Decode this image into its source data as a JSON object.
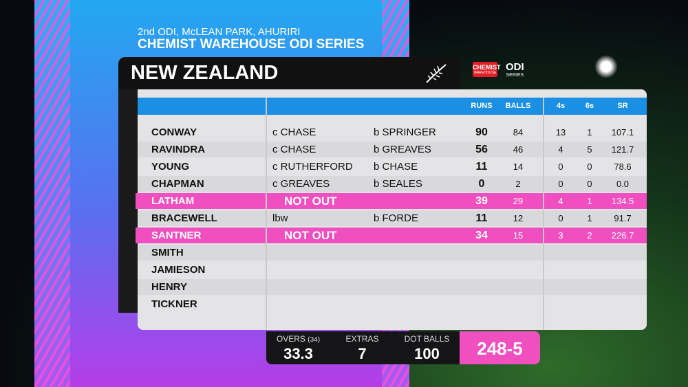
{
  "header": {
    "match": "2nd ODI, McLEAN PARK, AHURIRI",
    "series": "CHEMIST WAREHOUSE ODI SERIES",
    "team": "NEW ZEALAND",
    "sponsor": "CHEMIST",
    "sponsor_sub": "WAREHOUSE",
    "series_logo": "ODI",
    "series_logo_sub": "SERIES"
  },
  "table": {
    "columns": [
      "RUNS",
      "BALLS",
      "4s",
      "6s",
      "SR"
    ],
    "rows": [
      {
        "name": "CONWAY",
        "dismissal": "c CHASE",
        "bowler": "b SPRINGER",
        "runs": 90,
        "balls": 84,
        "fours": 13,
        "sixes": 1,
        "sr": "107.1"
      },
      {
        "name": "RAVINDRA",
        "dismissal": "c CHASE",
        "bowler": "b GREAVES",
        "runs": 56,
        "balls": 46,
        "fours": 4,
        "sixes": 5,
        "sr": "121.7"
      },
      {
        "name": "YOUNG",
        "dismissal": "c RUTHERFORD",
        "bowler": "b CHASE",
        "runs": 11,
        "balls": 14,
        "fours": 0,
        "sixes": 0,
        "sr": "78.6"
      },
      {
        "name": "CHAPMAN",
        "dismissal": "c GREAVES",
        "bowler": "b SEALES",
        "runs": 0,
        "balls": 2,
        "fours": 0,
        "sixes": 0,
        "sr": "0.0"
      },
      {
        "name": "LATHAM",
        "dismissal": "NOT OUT",
        "runs": 39,
        "balls": 29,
        "fours": 4,
        "sixes": 1,
        "sr": "134.5",
        "highlight": true
      },
      {
        "name": "BRACEWELL",
        "dismissal": "lbw",
        "bowler": "b FORDE",
        "runs": 11,
        "balls": 12,
        "fours": 0,
        "sixes": 1,
        "sr": "91.7"
      },
      {
        "name": "SANTNER",
        "dismissal": "NOT OUT",
        "runs": 34,
        "balls": 15,
        "fours": 3,
        "sixes": 2,
        "sr": "226.7",
        "highlight": true
      },
      {
        "name": "SMITH"
      },
      {
        "name": "JAMIESON"
      },
      {
        "name": "HENRY"
      },
      {
        "name": "TICKNER"
      }
    ]
  },
  "footer": {
    "overs_label": "OVERS",
    "overs_max": "(34)",
    "overs": 33.3,
    "extras_label": "EXTRAS",
    "extras": 7,
    "dot_balls_label": "DOT BALLS",
    "dot_balls": 100,
    "total": "248-5"
  }
}
